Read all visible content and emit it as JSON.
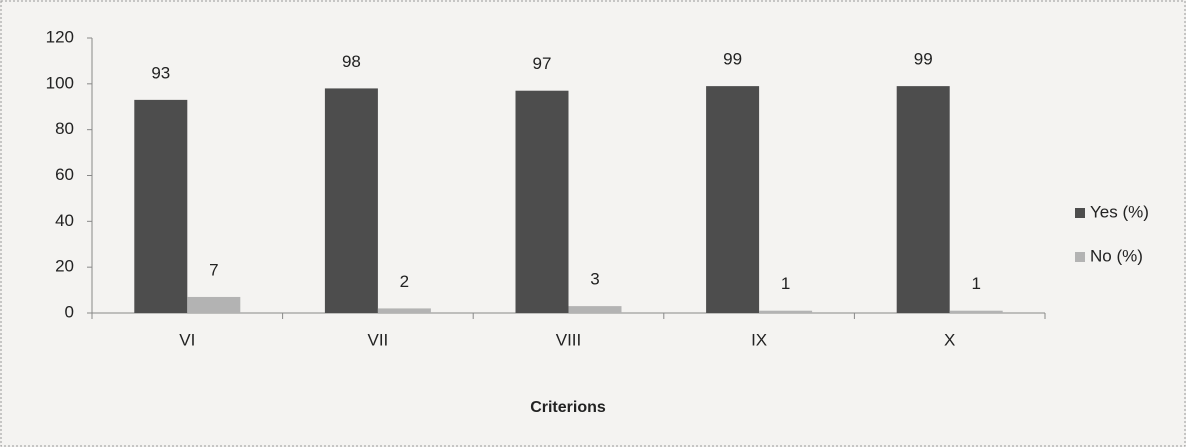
{
  "chart_data": {
    "type": "bar",
    "x_label": "Criterions",
    "categories": [
      "VI",
      "VII",
      "VIII",
      "IX",
      "X"
    ],
    "series": [
      {
        "name": "Yes (%)",
        "color": "#4d4d4d",
        "values": [
          93,
          98,
          97,
          99,
          99
        ]
      },
      {
        "name": "No (%)",
        "color": "#b3b3b3",
        "values": [
          7,
          2,
          3,
          1,
          1
        ]
      }
    ],
    "ylim": [
      0,
      120
    ],
    "yticks": [
      0,
      20,
      40,
      60,
      80,
      100,
      120
    ],
    "legend": "right",
    "data_labels": true
  }
}
